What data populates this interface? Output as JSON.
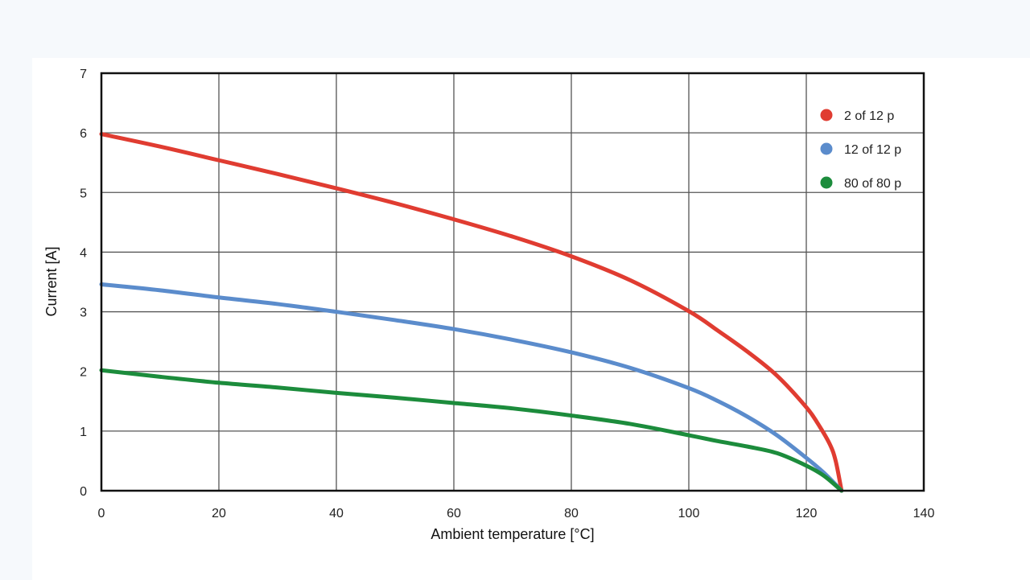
{
  "chart_data": {
    "type": "line",
    "title": "",
    "xlabel": "Ambient temperature [°C]",
    "ylabel": "Current [A]",
    "xlim": [
      0,
      140
    ],
    "ylim": [
      0,
      7
    ],
    "xticks": [
      0,
      20,
      40,
      60,
      80,
      100,
      120,
      140
    ],
    "yticks": [
      0,
      1,
      2,
      3,
      4,
      5,
      6,
      7
    ],
    "grid": true,
    "legend_position": "top-right",
    "series": [
      {
        "name": "2 of 12 p",
        "color": "#e03c31",
        "x": [
          0,
          10,
          20,
          30,
          40,
          50,
          60,
          70,
          80,
          90,
          100,
          105,
          110,
          115,
          120,
          122,
          124,
          125,
          126
        ],
        "y": [
          5.98,
          5.77,
          5.54,
          5.31,
          5.07,
          4.82,
          4.55,
          4.26,
          3.93,
          3.53,
          3.01,
          2.68,
          2.33,
          1.93,
          1.4,
          1.12,
          0.78,
          0.5,
          0.0
        ]
      },
      {
        "name": "12 of 12 p",
        "color": "#5b8ccc",
        "x": [
          0,
          10,
          20,
          30,
          40,
          50,
          60,
          70,
          80,
          90,
          100,
          105,
          110,
          115,
          120,
          123,
          126
        ],
        "y": [
          3.46,
          3.36,
          3.24,
          3.13,
          3.0,
          2.86,
          2.71,
          2.53,
          2.32,
          2.06,
          1.72,
          1.5,
          1.24,
          0.93,
          0.55,
          0.3,
          0.0
        ]
      },
      {
        "name": "80 of 80 p",
        "color": "#1c8c3c",
        "x": [
          0,
          10,
          20,
          30,
          40,
          50,
          60,
          70,
          80,
          90,
          100,
          105,
          110,
          115,
          120,
          123,
          126
        ],
        "y": [
          2.02,
          1.91,
          1.81,
          1.73,
          1.64,
          1.56,
          1.47,
          1.38,
          1.26,
          1.12,
          0.93,
          0.83,
          0.74,
          0.63,
          0.42,
          0.25,
          0.0
        ]
      }
    ]
  }
}
